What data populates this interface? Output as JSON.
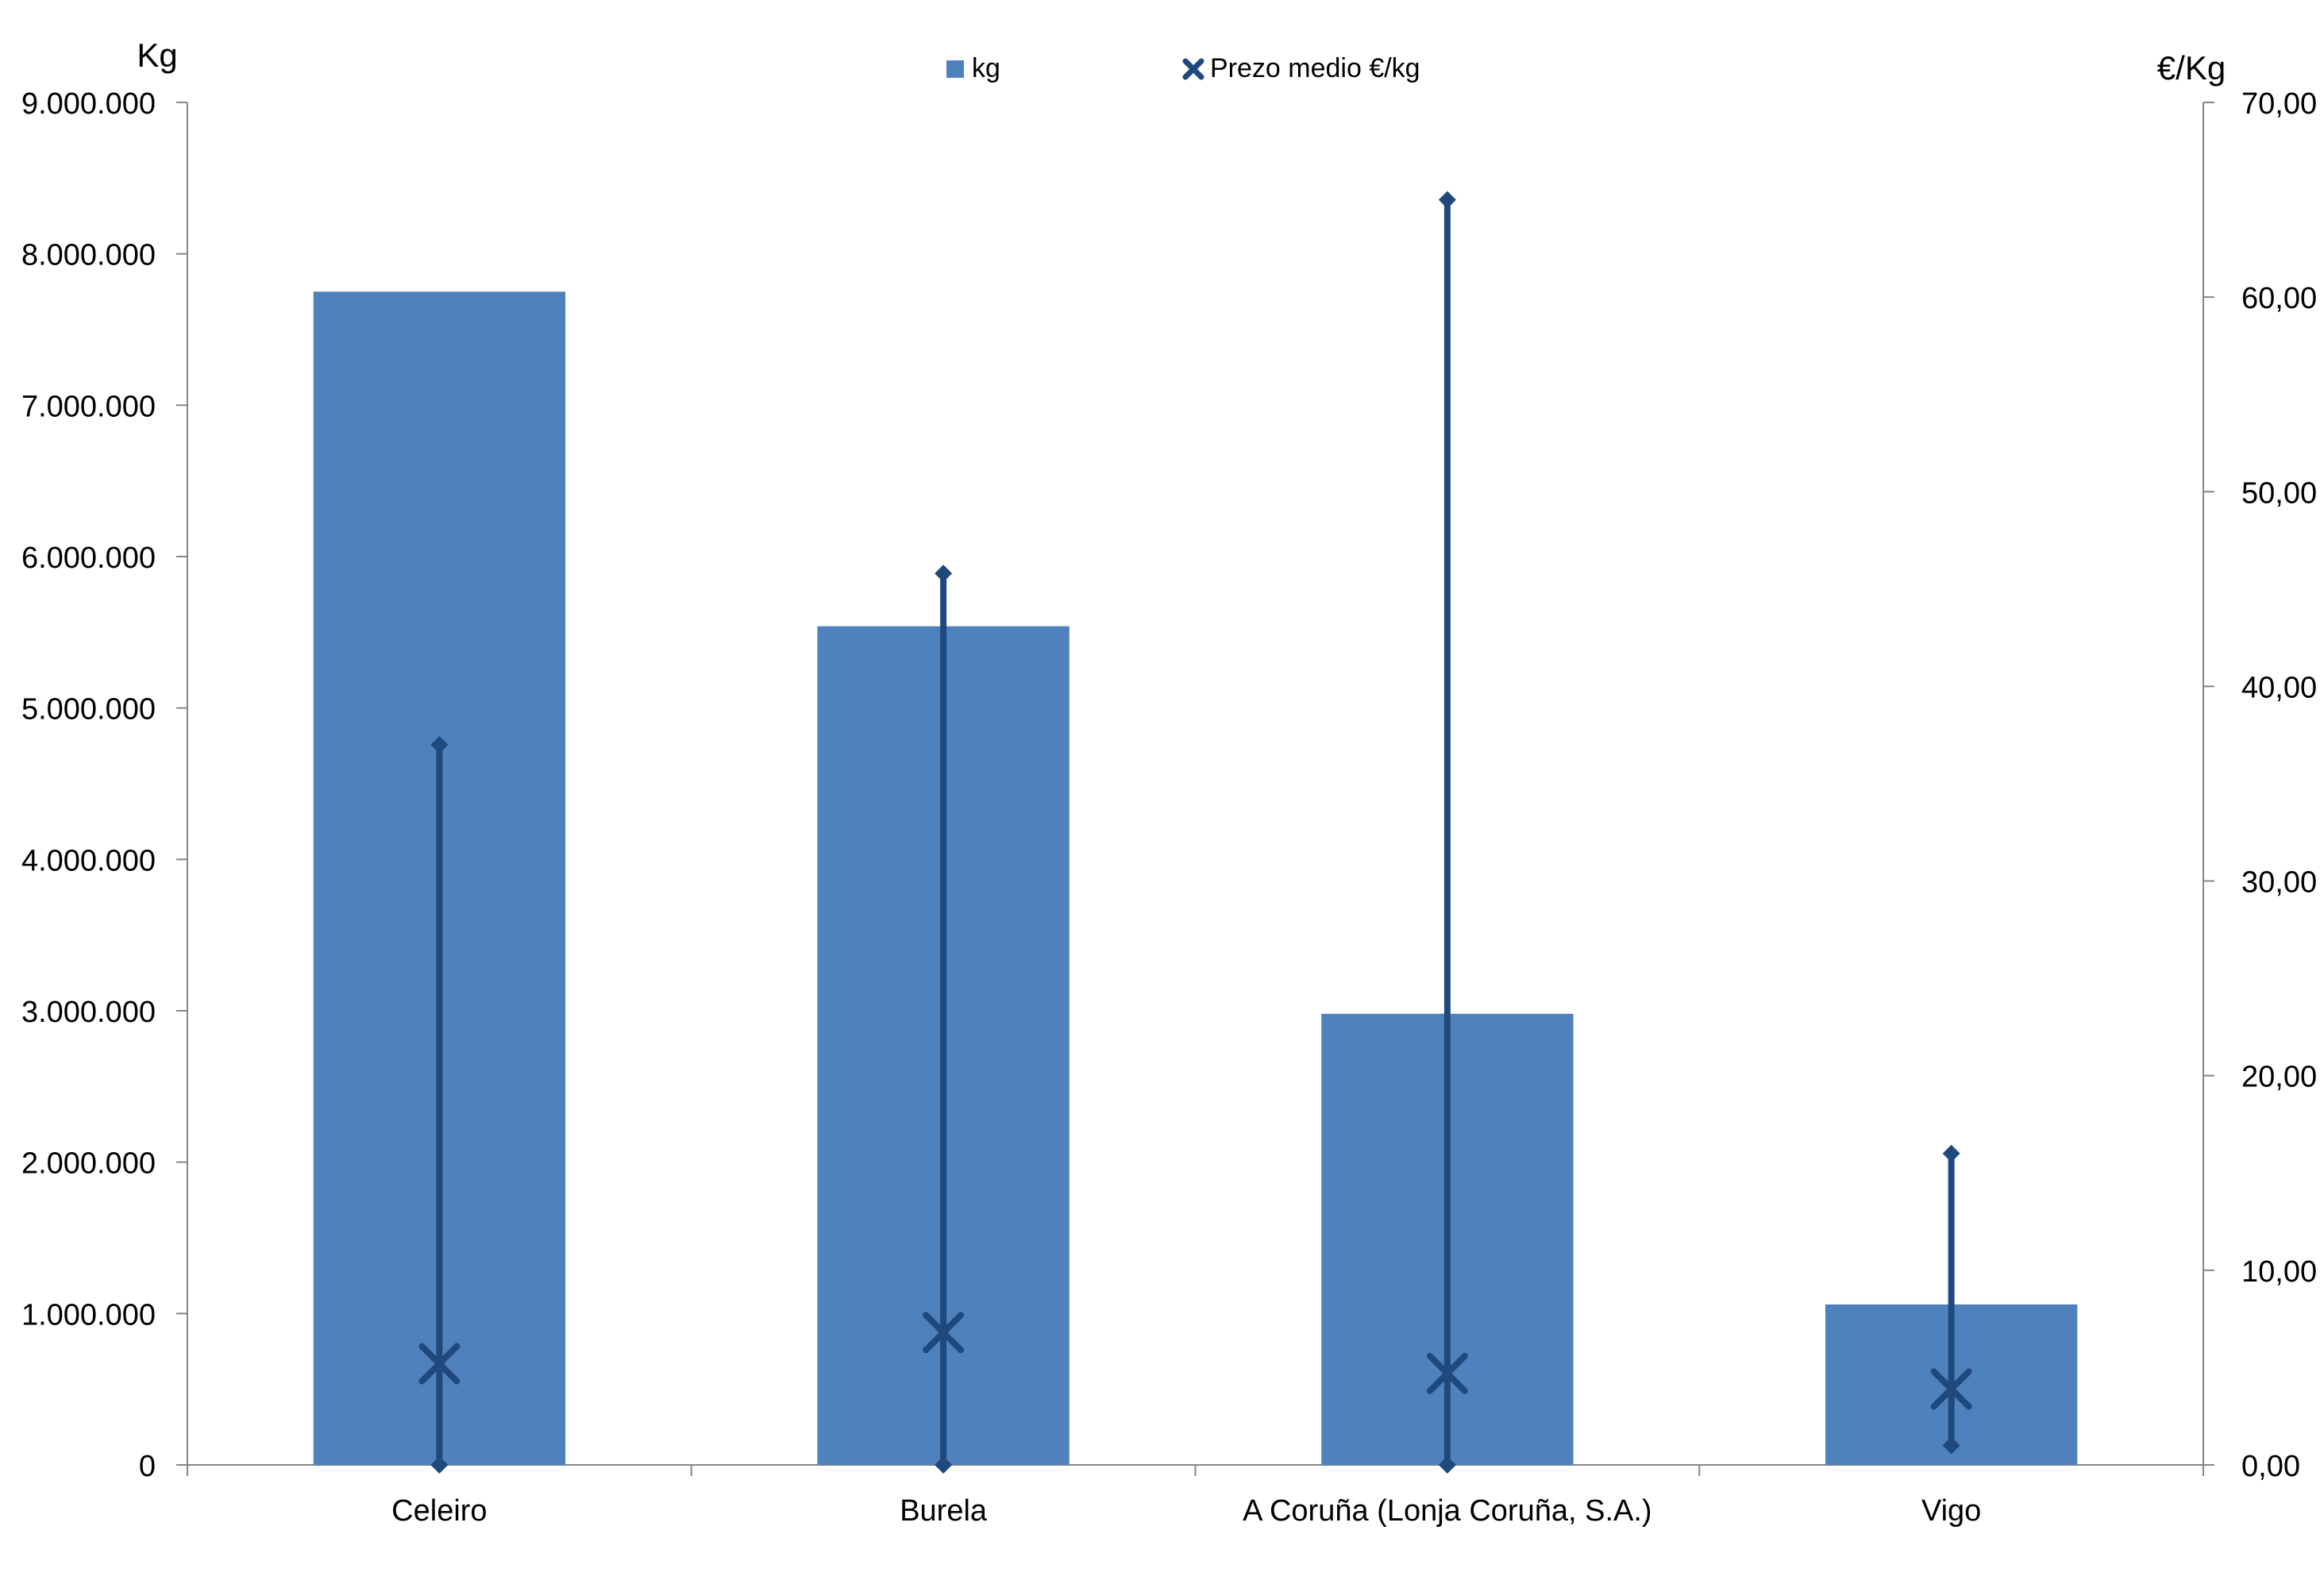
{
  "chart_data": {
    "type": "bar",
    "categories": [
      "Celeiro",
      "Burela",
      "A Coruña (Lonja Coruña, S.A.)",
      "Vigo"
    ],
    "series": [
      {
        "name": "kg",
        "type": "bar",
        "axis": "left",
        "color": "#4F81BD",
        "values": [
          7750000,
          5540000,
          2980000,
          1060000
        ]
      },
      {
        "name": "Prezo medio €/kg",
        "type": "scatter",
        "axis": "right",
        "color": "#1F497D",
        "marker": "x",
        "values": [
          5.2,
          6.8,
          4.7,
          3.9
        ],
        "range_min": [
          0.0,
          0.0,
          0.0,
          1.0
        ],
        "range_max": [
          37.0,
          45.8,
          65.0,
          16.0
        ]
      }
    ],
    "ylabel": "Kg",
    "y2label": "€/Kg",
    "ylim": [
      0,
      9000000
    ],
    "y2lim": [
      0,
      70
    ],
    "yticks": [
      "0",
      "1.000.000",
      "2.000.000",
      "3.000.000",
      "4.000.000",
      "5.000.000",
      "6.000.000",
      "7.000.000",
      "8.000.000",
      "9.000.000"
    ],
    "y2ticks": [
      "0,00",
      "10,00",
      "20,00",
      "30,00",
      "40,00",
      "50,00",
      "60,00",
      "70,00"
    ],
    "legend": {
      "placement": "top-center",
      "entries": [
        "kg",
        "Prezo medio €/kg"
      ]
    },
    "grid": false
  }
}
